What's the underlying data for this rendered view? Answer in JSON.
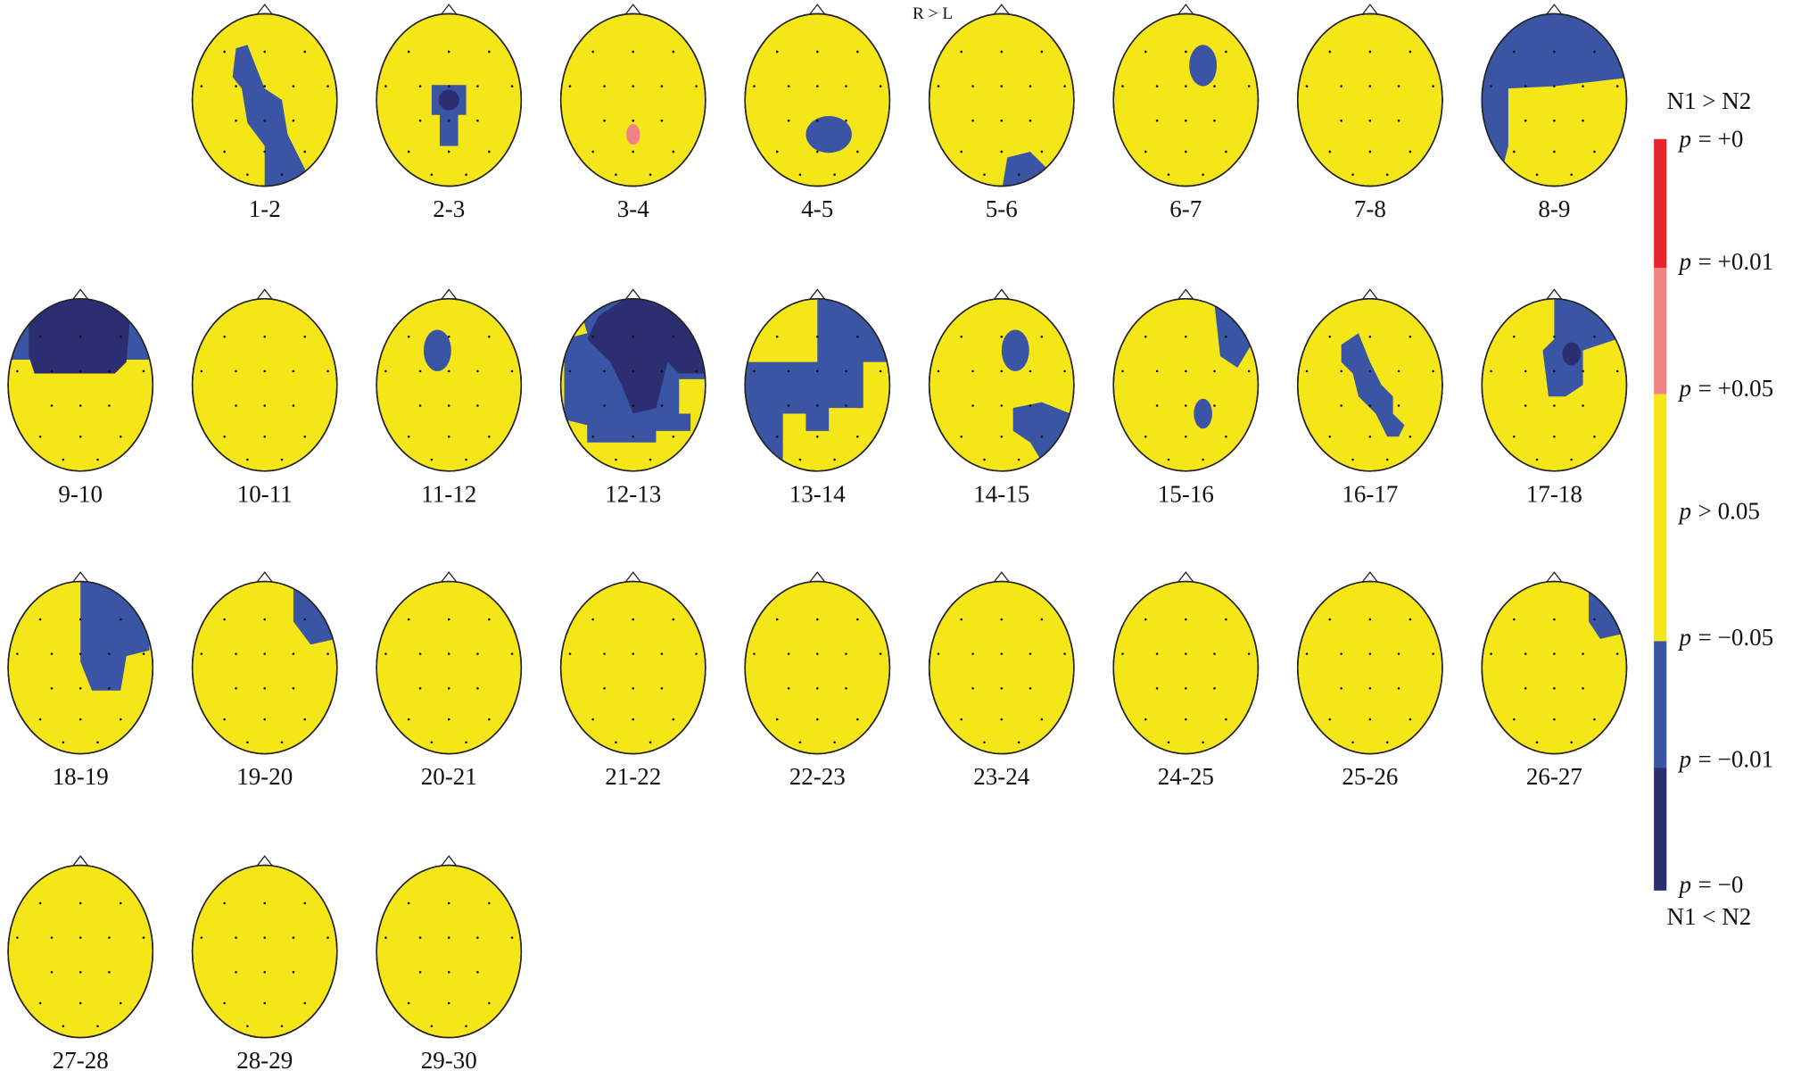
{
  "header": {
    "title": "R > L"
  },
  "maps": [
    "1-2",
    "2-3",
    "3-4",
    "4-5",
    "5-6",
    "6-7",
    "7-8",
    "8-9",
    "9-10",
    "10-11",
    "11-12",
    "12-13",
    "13-14",
    "14-15",
    "15-16",
    "16-17",
    "17-18",
    "18-19",
    "19-20",
    "20-21",
    "21-22",
    "22-23",
    "23-24",
    "24-25",
    "25-26",
    "26-27",
    "27-28",
    "28-29",
    "29-30"
  ],
  "colorbar": {
    "top": "N1 > N2",
    "bottom": "N1 < N2",
    "symbol": "p",
    "labels": [
      "= +0",
      "= +0.01",
      "= +0.05",
      "> 0.05",
      "= −0.05",
      "= −0.01",
      "= −0"
    ]
  }
}
